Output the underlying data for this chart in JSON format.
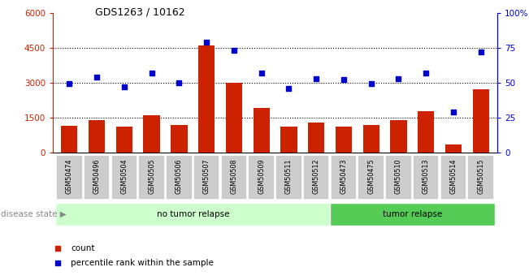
{
  "title": "GDS1263 / 10162",
  "samples": [
    "GSM50474",
    "GSM50496",
    "GSM50504",
    "GSM50505",
    "GSM50506",
    "GSM50507",
    "GSM50508",
    "GSM50509",
    "GSM50511",
    "GSM50512",
    "GSM50473",
    "GSM50475",
    "GSM50510",
    "GSM50513",
    "GSM50514",
    "GSM50515"
  ],
  "counts": [
    1150,
    1380,
    1100,
    1600,
    1200,
    4600,
    3000,
    1900,
    1100,
    1300,
    1100,
    1180,
    1380,
    1780,
    340,
    2700
  ],
  "percentiles": [
    49,
    54,
    47,
    57,
    50,
    79,
    73,
    57,
    46,
    53,
    52,
    49,
    53,
    57,
    29,
    72
  ],
  "bar_color": "#cc2200",
  "dot_color": "#0000cc",
  "left_ylim": [
    0,
    6000
  ],
  "right_ylim": [
    0,
    100
  ],
  "left_yticks": [
    0,
    1500,
    3000,
    4500,
    6000
  ],
  "left_yticklabels": [
    "0",
    "1500",
    "3000",
    "4500",
    "6000"
  ],
  "right_yticks": [
    0,
    25,
    50,
    75,
    100
  ],
  "right_yticklabels": [
    "0",
    "25",
    "50",
    "75",
    "100%"
  ],
  "group1_label": "no tumor relapse",
  "group2_label": "tumor relapse",
  "group1_count": 10,
  "group2_count": 6,
  "group1_bg": "#ccffcc",
  "group2_bg": "#55cc55",
  "sample_bg": "#cccccc",
  "disease_state_label": "disease state",
  "legend_count_label": "count",
  "legend_pct_label": "percentile rank within the sample",
  "bg_color": "#ffffff",
  "grid_lines": [
    1500,
    3000,
    4500
  ]
}
